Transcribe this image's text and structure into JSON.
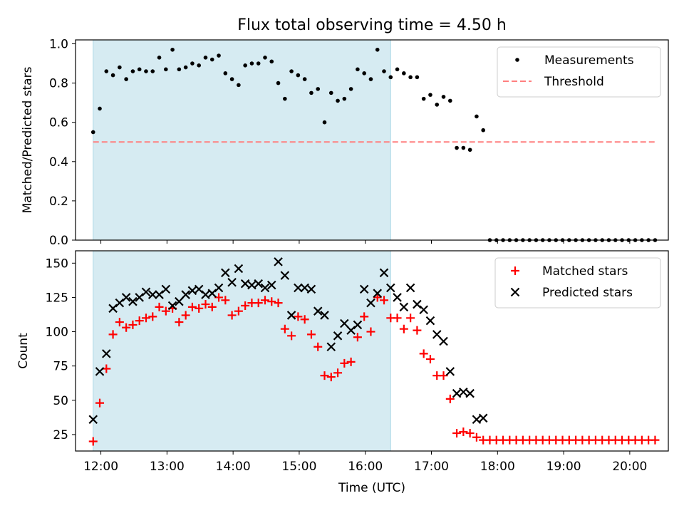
{
  "title": "Flux total observing time = 4.50 h",
  "colors": {
    "observing_window": "#add8e6",
    "measurement": "#000000",
    "threshold": "#ff7f7f",
    "matched": "#ff0000",
    "predicted": "#000000"
  },
  "chart_data": [
    {
      "type": "scatter",
      "ylabel": "Matched/Predicted stars",
      "xlabel": "",
      "x_tick_labels_visible": false,
      "y_ticks": [
        "0.0",
        "0.2",
        "0.4",
        "0.6",
        "0.8",
        "1.0"
      ],
      "ylim": [
        0,
        1.02
      ],
      "x_tick_labels": [
        "12:00",
        "13:00",
        "14:00",
        "15:00",
        "16:00",
        "17:00",
        "18:00",
        "19:00",
        "20:00"
      ],
      "xlim": [
        "11:37",
        "20:35"
      ],
      "grid": false,
      "legend_position": "top-right",
      "observing_window": [
        "11:53",
        "16:23"
      ],
      "threshold": {
        "name": "Threshold",
        "value": 0.5,
        "style": "dashed"
      },
      "series": [
        {
          "name": "Measurements",
          "marker": "dot",
          "points": [
            [
              "11:53",
              0.55
            ],
            [
              "11:59",
              0.67
            ],
            [
              "12:05",
              0.86
            ],
            [
              "12:11",
              0.84
            ],
            [
              "12:17",
              0.88
            ],
            [
              "12:23",
              0.82
            ],
            [
              "12:29",
              0.86
            ],
            [
              "12:35",
              0.87
            ],
            [
              "12:41",
              0.86
            ],
            [
              "12:47",
              0.86
            ],
            [
              "12:53",
              0.93
            ],
            [
              "12:59",
              0.87
            ],
            [
              "13:05",
              0.97
            ],
            [
              "13:11",
              0.87
            ],
            [
              "13:17",
              0.88
            ],
            [
              "13:23",
              0.9
            ],
            [
              "13:29",
              0.89
            ],
            [
              "13:35",
              0.93
            ],
            [
              "13:41",
              0.92
            ],
            [
              "13:47",
              0.94
            ],
            [
              "13:53",
              0.85
            ],
            [
              "13:59",
              0.82
            ],
            [
              "14:05",
              0.79
            ],
            [
              "14:11",
              0.89
            ],
            [
              "14:17",
              0.9
            ],
            [
              "14:23",
              0.9
            ],
            [
              "14:29",
              0.93
            ],
            [
              "14:35",
              0.91
            ],
            [
              "14:41",
              0.8
            ],
            [
              "14:47",
              0.72
            ],
            [
              "14:53",
              0.86
            ],
            [
              "14:59",
              0.84
            ],
            [
              "15:05",
              0.82
            ],
            [
              "15:11",
              0.75
            ],
            [
              "15:17",
              0.77
            ],
            [
              "15:23",
              0.6
            ],
            [
              "15:29",
              0.75
            ],
            [
              "15:35",
              0.71
            ],
            [
              "15:41",
              0.72
            ],
            [
              "15:47",
              0.77
            ],
            [
              "15:53",
              0.87
            ],
            [
              "15:59",
              0.85
            ],
            [
              "16:05",
              0.82
            ],
            [
              "16:11",
              0.97
            ],
            [
              "16:17",
              0.86
            ],
            [
              "16:23",
              0.83
            ],
            [
              "16:29",
              0.87
            ],
            [
              "16:35",
              0.85
            ],
            [
              "16:41",
              0.83
            ],
            [
              "16:47",
              0.83
            ],
            [
              "16:53",
              0.72
            ],
            [
              "16:59",
              0.74
            ],
            [
              "17:05",
              0.69
            ],
            [
              "17:11",
              0.73
            ],
            [
              "17:17",
              0.71
            ],
            [
              "17:23",
              0.47
            ],
            [
              "17:29",
              0.47
            ],
            [
              "17:35",
              0.46
            ],
            [
              "17:41",
              0.63
            ],
            [
              "17:47",
              0.56
            ],
            [
              "17:53",
              0
            ],
            [
              "17:59",
              0
            ],
            [
              "18:05",
              0
            ],
            [
              "18:11",
              0
            ],
            [
              "18:17",
              0
            ],
            [
              "18:23",
              0
            ],
            [
              "18:29",
              0
            ],
            [
              "18:35",
              0
            ],
            [
              "18:41",
              0
            ],
            [
              "18:47",
              0
            ],
            [
              "18:53",
              0
            ],
            [
              "18:59",
              0
            ],
            [
              "19:05",
              0
            ],
            [
              "19:11",
              0
            ],
            [
              "19:17",
              0
            ],
            [
              "19:23",
              0
            ],
            [
              "19:29",
              0
            ],
            [
              "19:35",
              0
            ],
            [
              "19:41",
              0
            ],
            [
              "19:47",
              0
            ],
            [
              "19:53",
              0
            ],
            [
              "19:59",
              0
            ],
            [
              "20:05",
              0
            ],
            [
              "20:11",
              0
            ],
            [
              "20:17",
              0
            ],
            [
              "20:23",
              0
            ]
          ]
        }
      ]
    },
    {
      "type": "scatter",
      "ylabel": "Count",
      "xlabel": "Time (UTC)",
      "y_ticks": [
        "25",
        "50",
        "75",
        "100",
        "125",
        "150"
      ],
      "ylim": [
        13,
        159
      ],
      "x_tick_labels": [
        "12:00",
        "13:00",
        "14:00",
        "15:00",
        "16:00",
        "17:00",
        "18:00",
        "19:00",
        "20:00"
      ],
      "xlim": [
        "11:37",
        "20:35"
      ],
      "grid": false,
      "legend_position": "top-right",
      "observing_window": [
        "11:53",
        "16:23"
      ],
      "series": [
        {
          "name": "Matched stars",
          "marker": "plus",
          "points": [
            [
              "11:53",
              20
            ],
            [
              "11:59",
              48
            ],
            [
              "12:05",
              73
            ],
            [
              "12:11",
              98
            ],
            [
              "12:17",
              107
            ],
            [
              "12:23",
              103
            ],
            [
              "12:29",
              105
            ],
            [
              "12:35",
              108
            ],
            [
              "12:41",
              110
            ],
            [
              "12:47",
              111
            ],
            [
              "12:53",
              118
            ],
            [
              "12:59",
              115
            ],
            [
              "13:05",
              117
            ],
            [
              "13:11",
              107
            ],
            [
              "13:17",
              112
            ],
            [
              "13:23",
              118
            ],
            [
              "13:29",
              117
            ],
            [
              "13:35",
              120
            ],
            [
              "13:41",
              118
            ],
            [
              "13:47",
              125
            ],
            [
              "13:53",
              123
            ],
            [
              "13:59",
              112
            ],
            [
              "14:05",
              115
            ],
            [
              "14:11",
              119
            ],
            [
              "14:17",
              121
            ],
            [
              "14:23",
              121
            ],
            [
              "14:29",
              123
            ],
            [
              "14:35",
              122
            ],
            [
              "14:41",
              121
            ],
            [
              "14:47",
              102
            ],
            [
              "14:53",
              97
            ],
            [
              "14:59",
              111
            ],
            [
              "15:05",
              109
            ],
            [
              "15:11",
              98
            ],
            [
              "15:17",
              89
            ],
            [
              "15:23",
              68
            ],
            [
              "15:29",
              67
            ],
            [
              "15:35",
              70
            ],
            [
              "15:41",
              77
            ],
            [
              "15:47",
              78
            ],
            [
              "15:53",
              96
            ],
            [
              "15:59",
              111
            ],
            [
              "16:05",
              100
            ],
            [
              "16:11",
              125
            ],
            [
              "16:17",
              123
            ],
            [
              "16:23",
              110
            ],
            [
              "16:29",
              110
            ],
            [
              "16:35",
              102
            ],
            [
              "16:41",
              110
            ],
            [
              "16:47",
              101
            ],
            [
              "16:53",
              84
            ],
            [
              "16:59",
              80
            ],
            [
              "17:05",
              68
            ],
            [
              "17:11",
              68
            ],
            [
              "17:17",
              51
            ],
            [
              "17:23",
              26
            ],
            [
              "17:29",
              27
            ],
            [
              "17:35",
              26
            ],
            [
              "17:41",
              23
            ],
            [
              "17:47",
              21
            ],
            [
              "17:53",
              21
            ],
            [
              "17:59",
              21
            ],
            [
              "18:05",
              21
            ],
            [
              "18:11",
              21
            ],
            [
              "18:17",
              21
            ],
            [
              "18:23",
              21
            ],
            [
              "18:29",
              21
            ],
            [
              "18:35",
              21
            ],
            [
              "18:41",
              21
            ],
            [
              "18:47",
              21
            ],
            [
              "18:53",
              21
            ],
            [
              "18:59",
              21
            ],
            [
              "19:05",
              21
            ],
            [
              "19:11",
              21
            ],
            [
              "19:17",
              21
            ],
            [
              "19:23",
              21
            ],
            [
              "19:29",
              21
            ],
            [
              "19:35",
              21
            ],
            [
              "19:41",
              21
            ],
            [
              "19:47",
              21
            ],
            [
              "19:53",
              21
            ],
            [
              "19:59",
              21
            ],
            [
              "20:05",
              21
            ],
            [
              "20:11",
              21
            ],
            [
              "20:17",
              21
            ],
            [
              "20:23",
              21
            ]
          ]
        },
        {
          "name": "Predicted stars",
          "marker": "x",
          "points": [
            [
              "11:53",
              36
            ],
            [
              "11:59",
              71
            ],
            [
              "12:05",
              84
            ],
            [
              "12:11",
              117
            ],
            [
              "12:17",
              121
            ],
            [
              "12:23",
              125
            ],
            [
              "12:29",
              122
            ],
            [
              "12:35",
              125
            ],
            [
              "12:41",
              129
            ],
            [
              "12:47",
              127
            ],
            [
              "12:53",
              127
            ],
            [
              "12:59",
              131
            ],
            [
              "13:05",
              119
            ],
            [
              "13:11",
              122
            ],
            [
              "13:17",
              127
            ],
            [
              "13:23",
              130
            ],
            [
              "13:29",
              131
            ],
            [
              "13:35",
              127
            ],
            [
              "13:41",
              128
            ],
            [
              "13:47",
              132
            ],
            [
              "13:53",
              143
            ],
            [
              "13:59",
              136
            ],
            [
              "14:05",
              146
            ],
            [
              "14:11",
              135
            ],
            [
              "14:17",
              134
            ],
            [
              "14:23",
              135
            ],
            [
              "14:29",
              132
            ],
            [
              "14:35",
              134
            ],
            [
              "14:41",
              151
            ],
            [
              "14:47",
              141
            ],
            [
              "14:53",
              112
            ],
            [
              "14:59",
              132
            ],
            [
              "15:05",
              132
            ],
            [
              "15:11",
              131
            ],
            [
              "15:17",
              115
            ],
            [
              "15:23",
              112
            ],
            [
              "15:29",
              89
            ],
            [
              "15:35",
              97
            ],
            [
              "15:41",
              106
            ],
            [
              "15:47",
              101
            ],
            [
              "15:53",
              105
            ],
            [
              "15:59",
              131
            ],
            [
              "16:05",
              121
            ],
            [
              "16:11",
              128
            ],
            [
              "16:17",
              143
            ],
            [
              "16:23",
              132
            ],
            [
              "16:29",
              125
            ],
            [
              "16:35",
              118
            ],
            [
              "16:41",
              132
            ],
            [
              "16:47",
              120
            ],
            [
              "16:53",
              116
            ],
            [
              "16:59",
              108
            ],
            [
              "17:05",
              98
            ],
            [
              "17:11",
              93
            ],
            [
              "17:17",
              71
            ],
            [
              "17:23",
              55
            ],
            [
              "17:29",
              56
            ],
            [
              "17:35",
              55
            ],
            [
              "17:41",
              36
            ],
            [
              "17:47",
              37
            ]
          ]
        }
      ]
    }
  ]
}
